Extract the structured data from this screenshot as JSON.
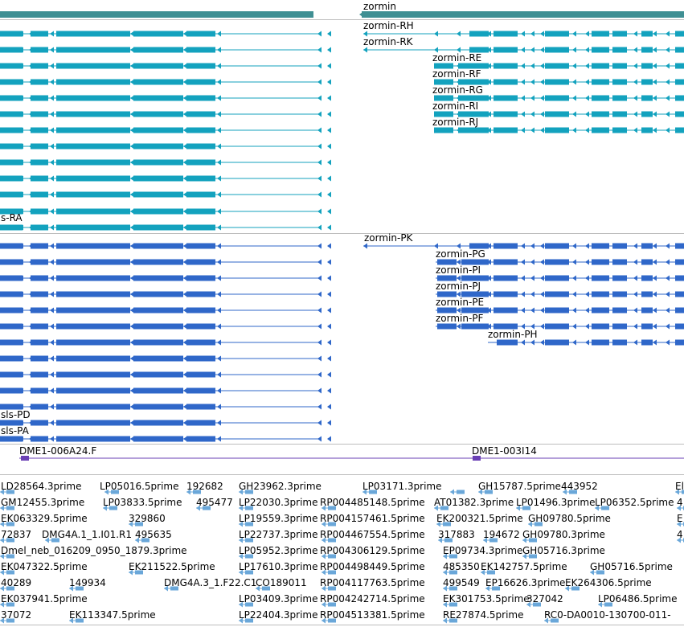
{
  "colors": {
    "gene_bar": "#3f8f93",
    "transcript": "#13a2be",
    "protein": "#2f67c9",
    "clone": "#6a3fb5",
    "est": "#6aa7d9",
    "separator": "#bdbdbd"
  },
  "genes": {
    "zormin_label": "zormin"
  },
  "transcripts": {
    "left_tail_label": "s-RA",
    "right_labels": [
      "zormin-RH",
      "zormin-RK",
      "zormin-RE",
      "zormin-RF",
      "zormin-RG",
      "zormin-RI",
      "zormin-RJ"
    ]
  },
  "proteins": {
    "left_labels": [
      "sls-PD",
      "sls-PA"
    ],
    "right_labels": [
      "zormin-PK",
      "zormin-PG",
      "zormin-PI",
      "zormin-PJ",
      "zormin-PE",
      "zormin-PF",
      "zormin-PH"
    ]
  },
  "clones": {
    "labels": [
      "DME1-006A24.F",
      "DME1-003I14"
    ]
  },
  "ests": {
    "labels": [
      "LD28564.3prime",
      "LP05016.5prime",
      "192682",
      "GH23962.3prime",
      "LP03171.3prime",
      "GH15787.5prime",
      "443952",
      "El",
      "GM12455.3prime",
      "LP03833.5prime",
      "495477",
      "LP22030.3prime",
      "RP004485148.5prime",
      "AT01382.3prime",
      "LP01496.3prime",
      "LP06352.5prime",
      "4",
      "EK063329.5prime",
      "329860",
      "LP19559.3prime",
      "RP004157461.5prime",
      "EK200321.5prime",
      "GH09780.5prime",
      "E",
      "72837",
      "DMG4A.1_1.I01.R1",
      "495635",
      "LP22737.3prime",
      "RP004467554.5prime",
      "317883",
      "194672",
      "GH09780.3prime",
      "4",
      "Dmel_neb_016209_0950_1879.3prime",
      "LP05952.3prime",
      "RP004306129.5prime",
      "EP09734.3prime",
      "GH05716.3prime",
      "EK047322.5prime",
      "EK211522.5prime",
      "LP17610.3prime",
      "RP004498449.5prime",
      "485350",
      "EK142757.5prime",
      "GH05716.5prime",
      "40289",
      "149934",
      "DMG4A.3_1.F22.C1",
      "CO189011",
      "RP004117763.5prime",
      "499549",
      "EP16626.3prime",
      "EK264306.5prime",
      "EK037941.5prime",
      "LP03409.3prime",
      "RP004242714.5prime",
      "EK301753.5prime",
      "327042",
      "LP06486.5prime",
      "37072",
      "EK113347.5prime",
      "LP22404.3prime",
      "RP004513381.5prime",
      "RE27874.5prime",
      "RC0-DA0010-130700-011-"
    ]
  }
}
